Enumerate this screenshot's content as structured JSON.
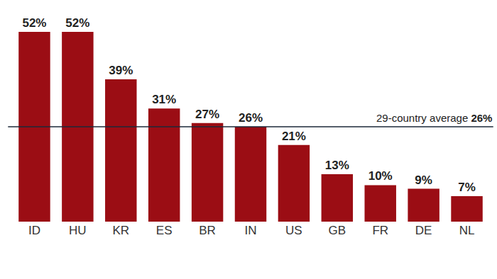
{
  "chart_data": {
    "type": "bar",
    "categories": [
      "ID",
      "HU",
      "KR",
      "ES",
      "BR",
      "IN",
      "US",
      "GB",
      "FR",
      "DE",
      "NL"
    ],
    "values": [
      52,
      52,
      39,
      31,
      27,
      26,
      21,
      13,
      10,
      9,
      7
    ],
    "value_labels": [
      "52%",
      "52%",
      "39%",
      "31%",
      "27%",
      "26%",
      "21%",
      "13%",
      "10%",
      "9%",
      "7%"
    ],
    "color": "#9b0d14",
    "ylim": [
      0,
      52
    ],
    "grid": false,
    "data_labels": true,
    "tick_labels": "x",
    "annotations": [
      {
        "text": "29-country average",
        "value": 26,
        "label": "26%"
      }
    ]
  }
}
